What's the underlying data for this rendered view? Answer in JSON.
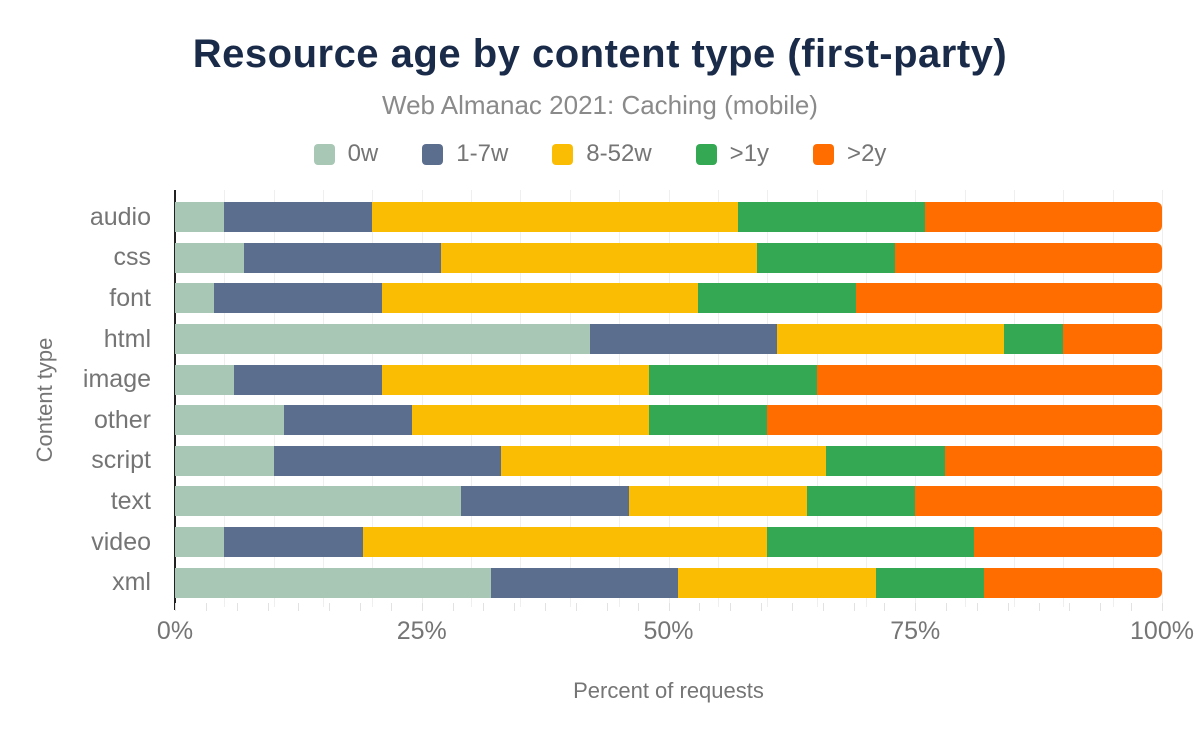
{
  "chart_data": {
    "type": "bar",
    "variant": "horizontal-stacked",
    "title": "Resource age by content type (first-party)",
    "subtitle": "Web Almanac 2021: Caching (mobile)",
    "xlabel": "Percent of requests",
    "ylabel": "Content type",
    "xlim": [
      0,
      100
    ],
    "x_ticks": [
      {
        "value": 0,
        "label": "0%"
      },
      {
        "value": 25,
        "label": "25%"
      },
      {
        "value": 50,
        "label": "50%"
      },
      {
        "value": 75,
        "label": "75%"
      },
      {
        "value": 100,
        "label": "100%"
      }
    ],
    "grid": {
      "on": true,
      "minor_step_pct": 5,
      "tick_step_pct": 3.125
    },
    "legend_position": "top",
    "legend": [
      {
        "label": "0w",
        "color": "#a8c7b5"
      },
      {
        "label": "1-7w",
        "color": "#5c6e8e"
      },
      {
        "label": "8-52w",
        "color": "#fbbc04"
      },
      {
        "label": ">1y",
        "color": "#34a853"
      },
      {
        "label": ">2y",
        "color": "#ff6d01"
      }
    ],
    "categories": [
      "audio",
      "css",
      "font",
      "html",
      "image",
      "other",
      "script",
      "text",
      "video",
      "xml"
    ],
    "series": [
      {
        "name": "0w",
        "values": [
          5,
          7,
          4,
          42,
          6,
          11,
          10,
          29,
          5,
          32
        ]
      },
      {
        "name": "1-7w",
        "values": [
          15,
          20,
          17,
          19,
          15,
          13,
          23,
          17,
          14,
          19
        ]
      },
      {
        "name": "8-52w",
        "values": [
          37,
          32,
          32,
          23,
          27,
          24,
          33,
          18,
          41,
          20
        ]
      },
      {
        "name": ">1y",
        "values": [
          19,
          14,
          16,
          6,
          17,
          12,
          12,
          11,
          21,
          11
        ]
      },
      {
        "name": ">2y",
        "values": [
          24,
          27,
          31,
          10,
          35,
          40,
          22,
          25,
          19,
          18
        ]
      }
    ],
    "colors": {
      "title": "#1a2b49",
      "subtitle": "#8a8a8a",
      "axis_text": "#757575",
      "axis_line": "#212121",
      "gridline": "#efefef"
    }
  }
}
